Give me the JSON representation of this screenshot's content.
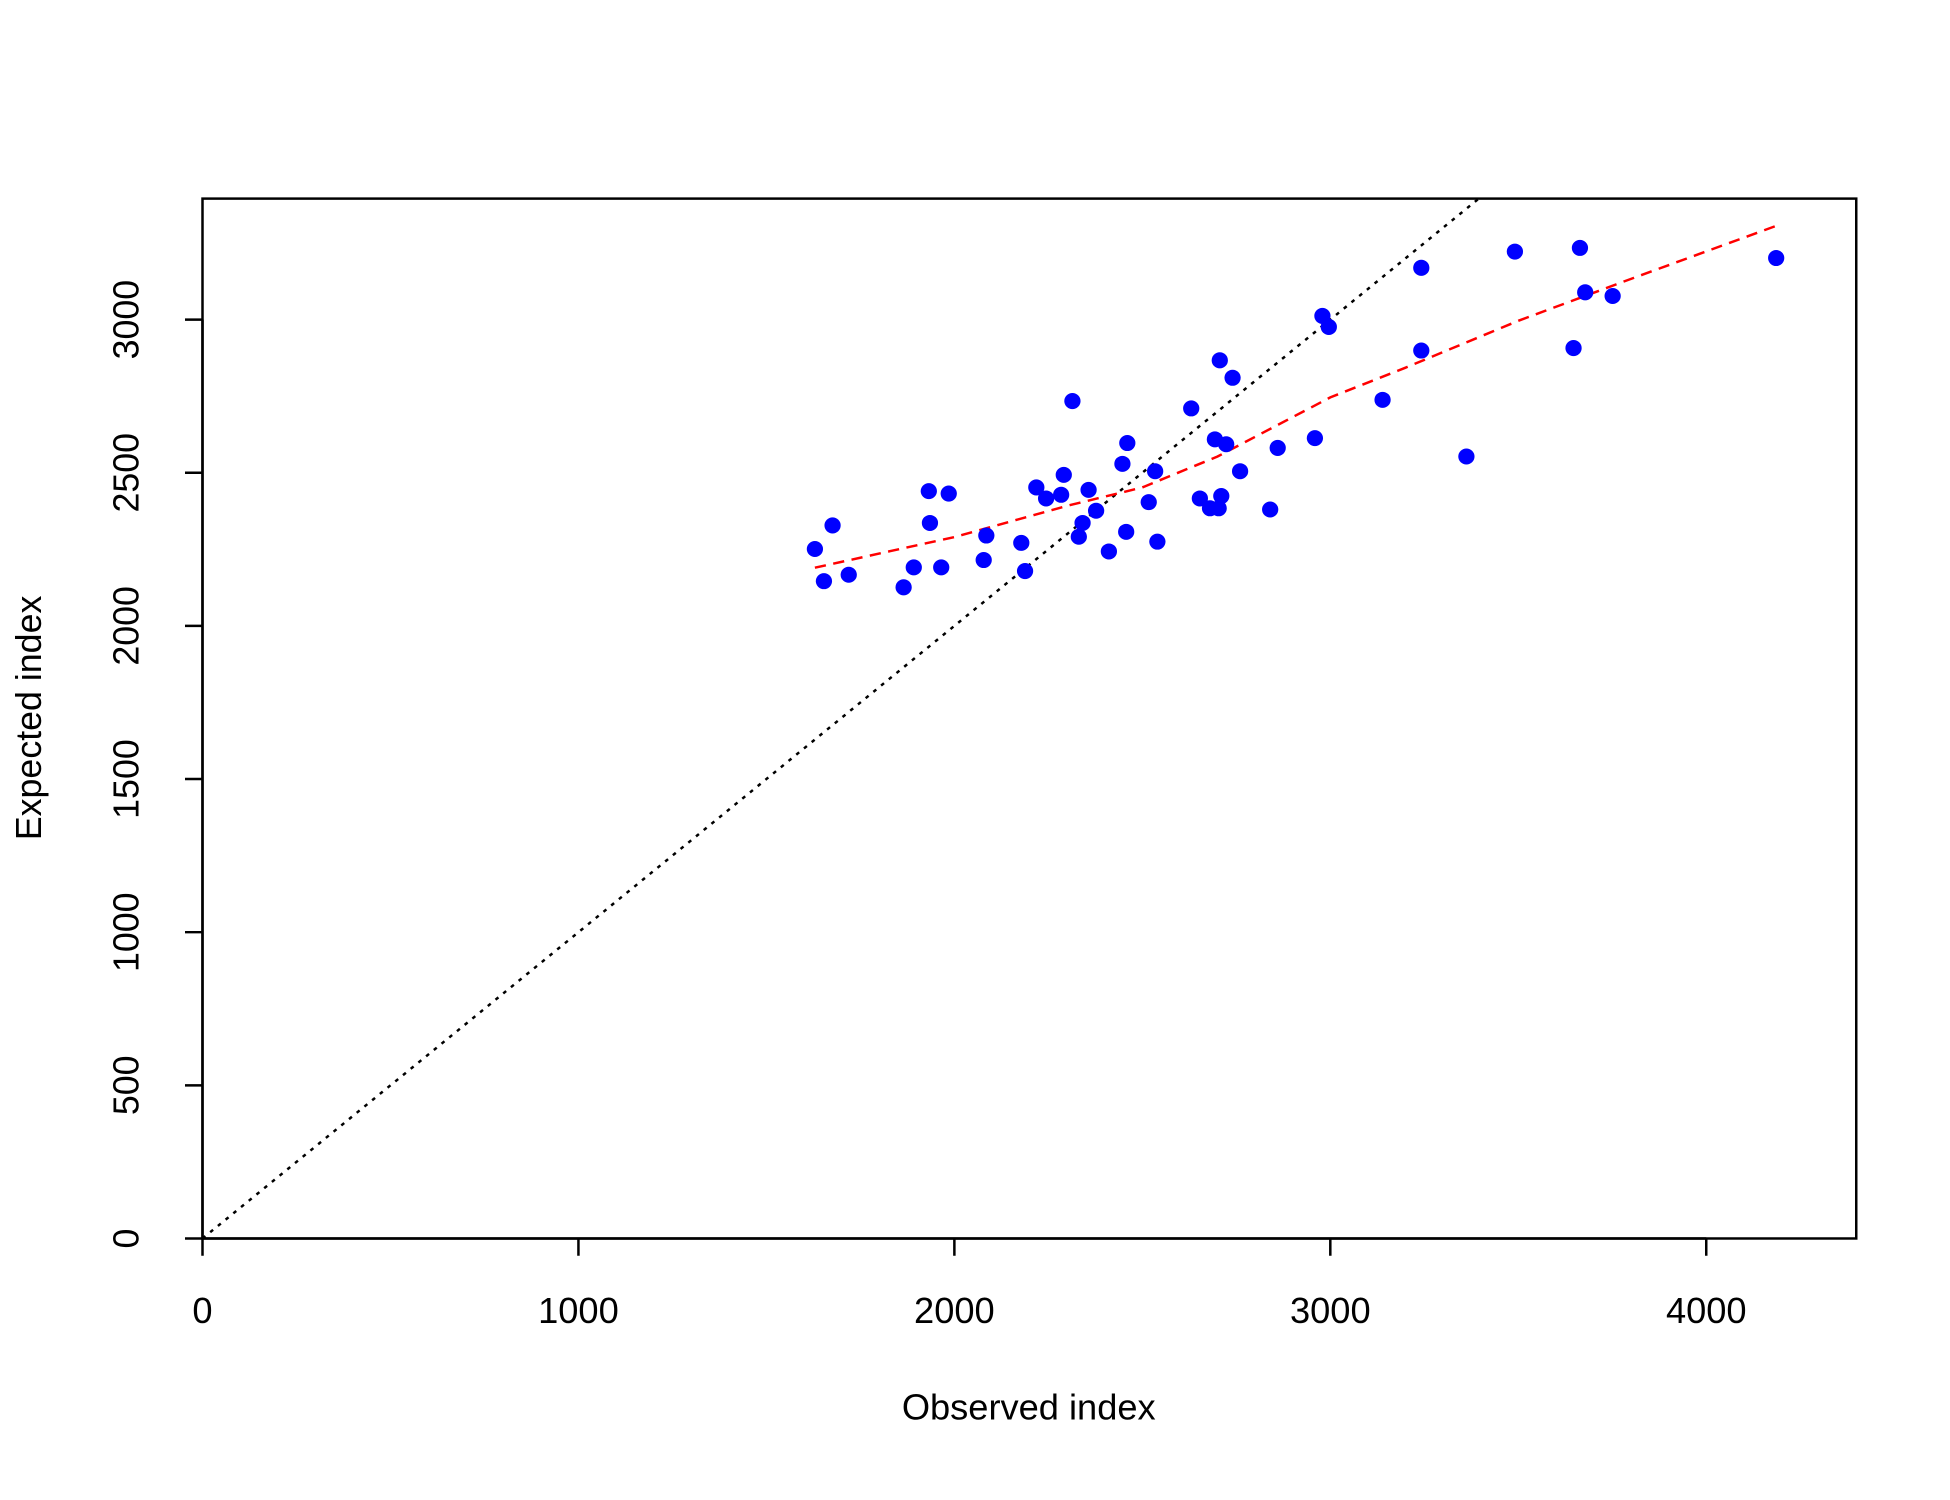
{
  "chart_data": {
    "type": "scatter",
    "x_label": "Observed index",
    "y_label": "Expected index",
    "xlim": [
      0,
      4399
    ],
    "ylim": [
      0,
      3395
    ],
    "xticks": [
      0,
      1000,
      2000,
      3000,
      4000
    ],
    "yticks": [
      0,
      500,
      1000,
      1500,
      2000,
      2500,
      3000
    ],
    "identity_line": true,
    "identity_color": "#000000",
    "series": [
      {
        "color": "#0000ff",
        "x": [
          1629,
          1653,
          1676,
          1719,
          1865,
          1892,
          1932,
          1935,
          1965,
          1985,
          2078,
          2085,
          2178,
          2188,
          2218,
          2244,
          2284,
          2291,
          2314,
          2331,
          2341,
          2357,
          2377,
          2411,
          2447,
          2457,
          2460,
          2517,
          2534,
          2540,
          2630,
          2653,
          2680,
          2693,
          2703,
          2706,
          2710,
          2723,
          2740,
          2760,
          2840,
          2860,
          2959,
          2979,
          2996,
          3139,
          3242,
          3242,
          3362,
          3491,
          3647,
          3664,
          3678,
          3751,
          4186
        ],
        "values": [
          2251,
          2146,
          2328,
          2167,
          2126,
          2191,
          2440,
          2336,
          2191,
          2432,
          2215,
          2295,
          2271,
          2179,
          2452,
          2416,
          2428,
          2493,
          2734,
          2291,
          2336,
          2444,
          2376,
          2243,
          2529,
          2307,
          2597,
          2404,
          2505,
          2275,
          2710,
          2416,
          2384,
          2609,
          2384,
          2867,
          2424,
          2593,
          2810,
          2505,
          2380,
          2581,
          2613,
          3012,
          2976,
          2738,
          3169,
          2899,
          2553,
          3222,
          2907,
          3234,
          3089,
          3077,
          3201
        ]
      }
    ],
    "trend": {
      "color": "#ff0000",
      "x": [
        1629,
        2000,
        2300,
        2500,
        2700,
        3000,
        3200,
        3500,
        3800,
        4186
      ],
      "values": [
        2190,
        2290,
        2392,
        2452,
        2553,
        2746,
        2843,
        2996,
        3133,
        3306
      ]
    }
  }
}
